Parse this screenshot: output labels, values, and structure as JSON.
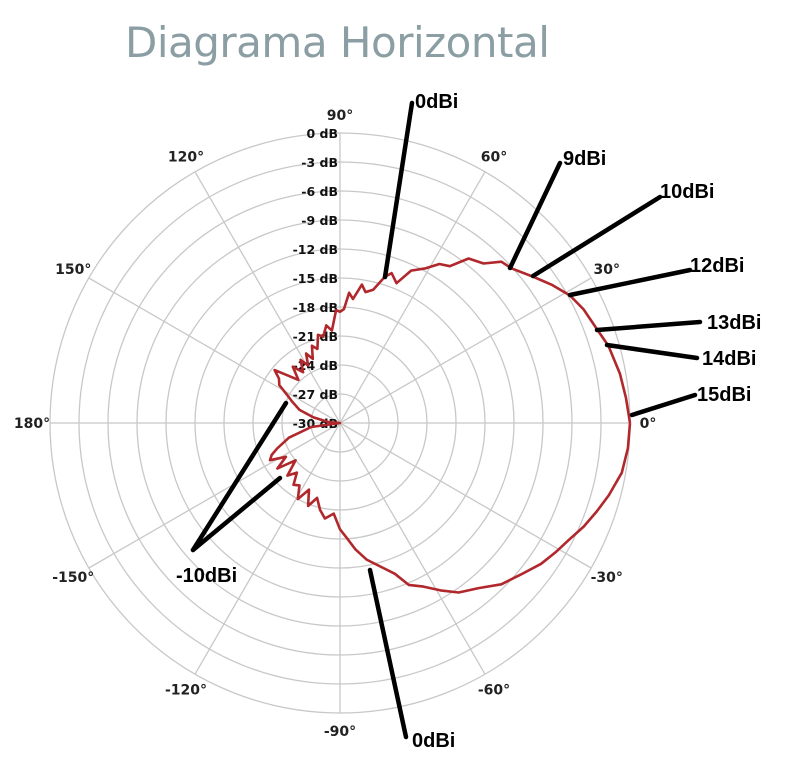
{
  "chart_data": {
    "type": "polar",
    "title": "Diagrama Horizontal",
    "angle_ticks": [
      "0°",
      "30°",
      "60°",
      "90°",
      "120°",
      "150°",
      "180°",
      "-150°",
      "-120°",
      "-90°",
      "-60°",
      "-30°"
    ],
    "radial_ticks": [
      "0 dB",
      "-3 dB",
      "-6 dB",
      "-9 dB",
      "-12 dB",
      "-15 dB",
      "-18 dB",
      "-21 dB",
      "-24 dB",
      "-27 dB",
      "-30 dB"
    ],
    "rlim": [
      -30,
      0
    ],
    "grid": true,
    "series_color": "#b0282c",
    "pattern": {
      "angles_deg": [
        0,
        5,
        10,
        16,
        20,
        25,
        29,
        33,
        37,
        42,
        45,
        48,
        52,
        55,
        58,
        61,
        65,
        68,
        71,
        73,
        76,
        79,
        81,
        84,
        86,
        88,
        90,
        92,
        95,
        98,
        101,
        104,
        107,
        110,
        113,
        116,
        119,
        122,
        126,
        130,
        134,
        138,
        141,
        144,
        148,
        152,
        156,
        162,
        168,
        175,
        180,
        188,
        196,
        202,
        205,
        208,
        212,
        216,
        220,
        225,
        229,
        233,
        237,
        241,
        245,
        249,
        253,
        257,
        261,
        266,
        270,
        273,
        277,
        281,
        286,
        290,
        293,
        297,
        301,
        305,
        310,
        315,
        320,
        325,
        329,
        333,
        337,
        341,
        345,
        350,
        355,
        360
      ],
      "db": [
        0,
        -0.3,
        -0.6,
        -1.1,
        -1.7,
        -2.2,
        -2.8,
        -3.8,
        -4.9,
        -6.1,
        -6.4,
        -7.8,
        -8.4,
        -10.2,
        -10.6,
        -11.7,
        -12.6,
        -14.4,
        -13.6,
        -14.2,
        -15.8,
        -16.2,
        -15.5,
        -17.1,
        -16.5,
        -18.2,
        -18.5,
        -18.3,
        -20.4,
        -19.8,
        -20.9,
        -20.6,
        -22.0,
        -21.5,
        -22.8,
        -22.0,
        -23.2,
        -22.3,
        -23.5,
        -22.4,
        -23.8,
        -22.6,
        -21.3,
        -22.2,
        -22.6,
        -23.8,
        -24.6,
        -25.6,
        -27.2,
        -28.8,
        -30,
        -27.0,
        -24.5,
        -23.0,
        -22.2,
        -21.8,
        -23.4,
        -22.0,
        -24.0,
        -22.3,
        -23.2,
        -22.0,
        -22.3,
        -21.0,
        -22.4,
        -20.8,
        -21.9,
        -20.8,
        -20.0,
        -20.6,
        -19.0,
        -18.2,
        -16.8,
        -15.6,
        -14.5,
        -13.4,
        -11.8,
        -11.0,
        -9.8,
        -8.6,
        -7.7,
        -6.4,
        -5.6,
        -4.6,
        -4.0,
        -3.4,
        -2.6,
        -1.9,
        -1.2,
        -0.4,
        -0.1,
        0
      ]
    },
    "annotations": [
      "0dBi",
      "9dBi",
      "10dBi",
      "12dBi",
      "13dBi",
      "14dBi",
      "15dBi",
      "-10dBi",
      "0dBi"
    ]
  }
}
